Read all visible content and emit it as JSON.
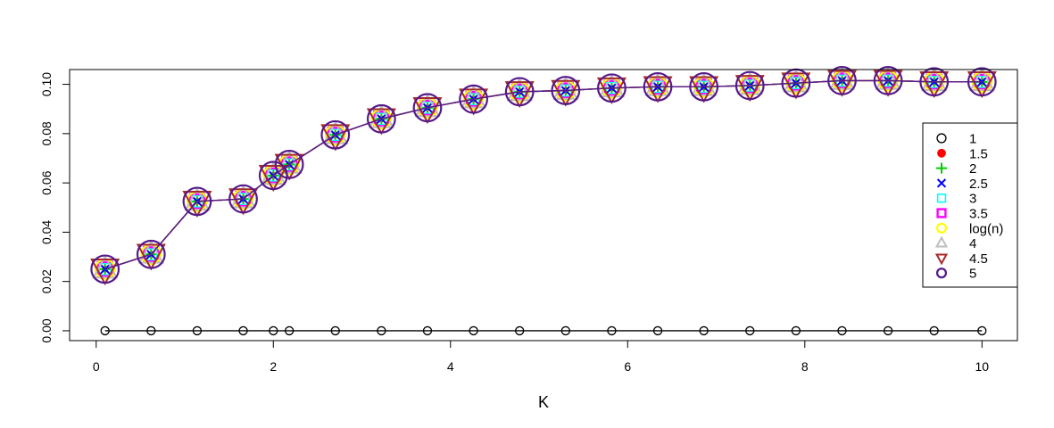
{
  "chart_data": {
    "type": "line",
    "title": "",
    "xlabel": "K",
    "ylabel": "",
    "xlim": [
      -0.3,
      10.4
    ],
    "ylim": [
      -0.004,
      0.106
    ],
    "xticks": [
      0,
      2,
      4,
      6,
      8,
      10
    ],
    "yticks": [
      0.0,
      0.02,
      0.04,
      0.06,
      0.08,
      0.1
    ],
    "xtick_labels": [
      "0",
      "2",
      "4",
      "6",
      "8",
      "10"
    ],
    "ytick_labels": [
      "0.00",
      "0.02",
      "0.04",
      "0.06",
      "0.08",
      "0.10"
    ],
    "grid": false,
    "legend_position": "right",
    "x": [
      0.1,
      0.62,
      1.14,
      1.66,
      2.0,
      2.18,
      2.7,
      3.22,
      3.74,
      4.26,
      4.78,
      5.3,
      5.82,
      6.34,
      6.86,
      7.38,
      7.9,
      8.42,
      8.94,
      9.46,
      10.0
    ],
    "series": [
      {
        "name": "1",
        "color": "#000000",
        "marker": "open-circle",
        "values": [
          0,
          0,
          0,
          0,
          0,
          0,
          0,
          0,
          0,
          0,
          0,
          0,
          0,
          0,
          0,
          0,
          0,
          0,
          0,
          0,
          0
        ]
      },
      {
        "name": "1.5",
        "color": "#ff0000",
        "marker": "filled-circle",
        "values": [
          0.025,
          0.031,
          0.0525,
          0.0535,
          0.063,
          0.0675,
          0.0795,
          0.086,
          0.0905,
          0.094,
          0.097,
          0.0975,
          0.0985,
          0.099,
          0.099,
          0.0995,
          0.1005,
          0.1015,
          0.1015,
          0.101,
          0.101
        ]
      },
      {
        "name": "2",
        "color": "#00cd00",
        "marker": "plus",
        "values": [
          0.025,
          0.031,
          0.0525,
          0.0535,
          0.063,
          0.0675,
          0.0795,
          0.086,
          0.0905,
          0.094,
          0.097,
          0.0975,
          0.0985,
          0.099,
          0.099,
          0.0995,
          0.1005,
          0.1015,
          0.1015,
          0.101,
          0.101
        ]
      },
      {
        "name": "2.5",
        "color": "#0000ff",
        "marker": "cross",
        "values": [
          0.025,
          0.031,
          0.0525,
          0.0535,
          0.063,
          0.0675,
          0.0795,
          0.086,
          0.0905,
          0.094,
          0.097,
          0.0975,
          0.0985,
          0.099,
          0.099,
          0.0995,
          0.1005,
          0.1015,
          0.1015,
          0.101,
          0.101
        ]
      },
      {
        "name": "3",
        "color": "#00ffff",
        "marker": "open-square",
        "values": [
          0.025,
          0.031,
          0.0525,
          0.0535,
          0.063,
          0.0675,
          0.0795,
          0.086,
          0.0905,
          0.094,
          0.097,
          0.0975,
          0.0985,
          0.099,
          0.099,
          0.0995,
          0.1005,
          0.1015,
          0.1015,
          0.101,
          0.101
        ]
      },
      {
        "name": "3.5",
        "color": "#ff00ff",
        "marker": "open-square-thick",
        "values": [
          0.025,
          0.031,
          0.0525,
          0.0535,
          0.063,
          0.0675,
          0.0795,
          0.086,
          0.0905,
          0.094,
          0.097,
          0.0975,
          0.0985,
          0.099,
          0.099,
          0.0995,
          0.1005,
          0.1015,
          0.1015,
          0.101,
          0.101
        ]
      },
      {
        "name": "log(n)",
        "color": "#ffff00",
        "marker": "open-circle-thick",
        "values": [
          0.025,
          0.031,
          0.0525,
          0.0535,
          0.063,
          0.0675,
          0.0795,
          0.086,
          0.0905,
          0.094,
          0.097,
          0.0975,
          0.0985,
          0.099,
          0.099,
          0.0995,
          0.1005,
          0.1015,
          0.1015,
          0.101,
          0.101
        ]
      },
      {
        "name": "4",
        "color": "#bebebe",
        "marker": "open-triangle-up",
        "values": [
          0.025,
          0.031,
          0.0525,
          0.0535,
          0.063,
          0.0675,
          0.0795,
          0.086,
          0.0905,
          0.094,
          0.097,
          0.0975,
          0.0985,
          0.099,
          0.099,
          0.0995,
          0.1005,
          0.1015,
          0.1015,
          0.101,
          0.101
        ]
      },
      {
        "name": "4.5",
        "color": "#a52a2a",
        "marker": "open-triangle-down",
        "values": [
          0.025,
          0.031,
          0.0525,
          0.0535,
          0.063,
          0.0675,
          0.0795,
          0.086,
          0.0905,
          0.094,
          0.097,
          0.0975,
          0.0985,
          0.099,
          0.099,
          0.0995,
          0.1005,
          0.1015,
          0.1015,
          0.101,
          0.101
        ]
      },
      {
        "name": "5",
        "color": "#551a8b",
        "marker": "open-circle-thick",
        "values": [
          0.025,
          0.031,
          0.0525,
          0.0535,
          0.063,
          0.0675,
          0.0795,
          0.086,
          0.0905,
          0.094,
          0.097,
          0.0975,
          0.0985,
          0.099,
          0.099,
          0.0995,
          0.1005,
          0.1015,
          0.1015,
          0.101,
          0.101
        ]
      }
    ]
  }
}
